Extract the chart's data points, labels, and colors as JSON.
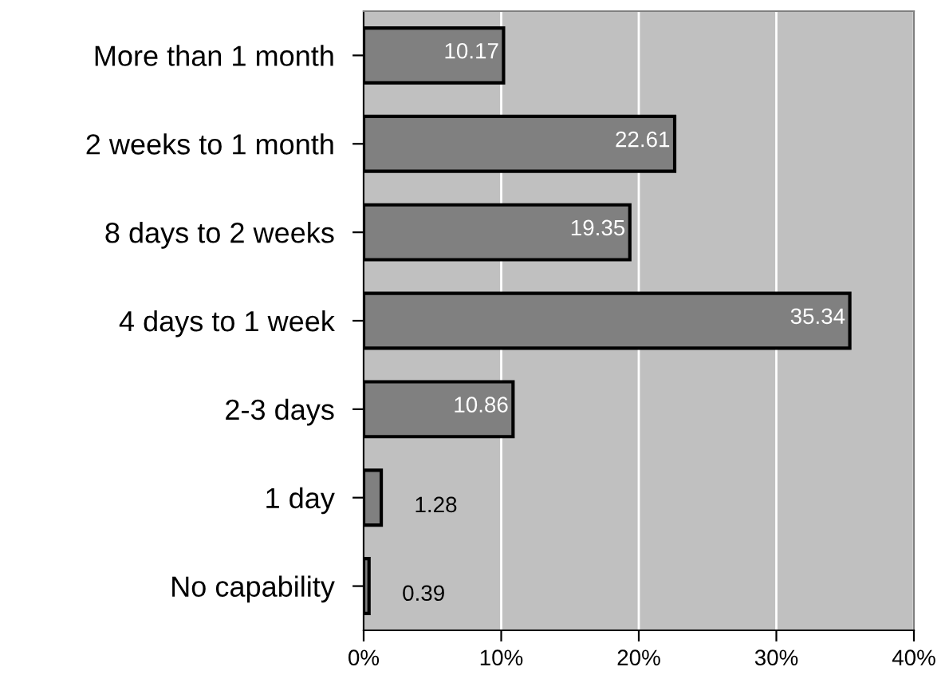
{
  "chart_data": {
    "type": "bar",
    "orientation": "horizontal",
    "categories": [
      "More than 1 month",
      "2 weeks to 1 month",
      "8 days to 2 weeks",
      "4 days to 1 week",
      "2-3 days",
      "1 day",
      "No capability"
    ],
    "values": [
      10.17,
      22.61,
      19.35,
      35.34,
      10.86,
      1.28,
      0.39
    ],
    "color": "#808080",
    "data_labels": true,
    "xlim": [
      0,
      40
    ],
    "xticks": [
      {
        "value": 0,
        "label": "0%"
      },
      {
        "value": 10,
        "label": "10%"
      },
      {
        "value": 20,
        "label": "20%"
      },
      {
        "value": 30,
        "label": "30%"
      },
      {
        "value": 40,
        "label": "40%"
      }
    ],
    "grid": "x",
    "legend": false
  }
}
